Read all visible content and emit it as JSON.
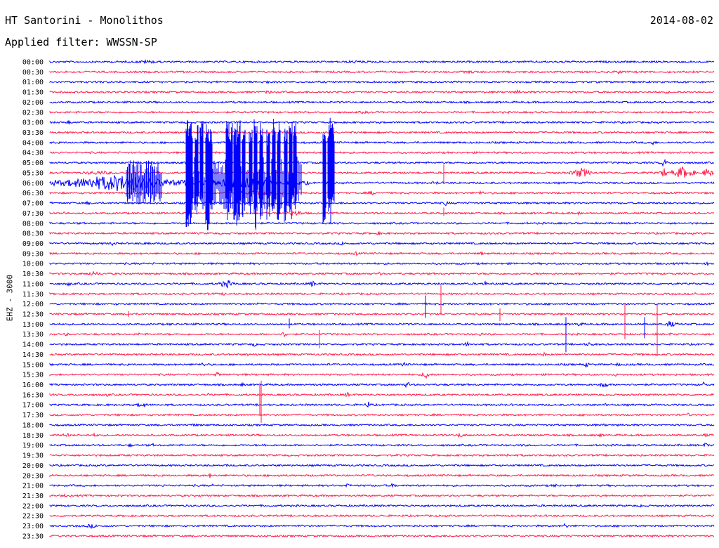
{
  "header": {
    "station": "HT Santorini - Monolithos",
    "date": "2014-08-02",
    "filter": "Applied filter: WWSSN-SP"
  },
  "channel_label": "EHZ - 3000",
  "colors": {
    "even_row": "#0000ff",
    "odd_row": "#ff1a4a",
    "text": "#000000"
  },
  "chart_data": {
    "type": "line",
    "title": "HT Santorini - Monolithos",
    "rows": [
      "00:00",
      "00:30",
      "01:00",
      "01:30",
      "02:00",
      "02:30",
      "03:00",
      "03:30",
      "04:00",
      "04:30",
      "05:00",
      "05:30",
      "06:00",
      "06:30",
      "07:00",
      "07:30",
      "08:00",
      "08:30",
      "09:00",
      "09:30",
      "10:00",
      "10:30",
      "11:00",
      "11:30",
      "12:00",
      "12:30",
      "13:00",
      "13:30",
      "14:00",
      "14:30",
      "15:00",
      "15:30",
      "16:00",
      "16:30",
      "17:00",
      "17:30",
      "18:00",
      "18:30",
      "19:00",
      "19:30",
      "20:00",
      "20:30",
      "21:00",
      "21:30",
      "22:00",
      "22:30",
      "23:00",
      "23:30"
    ],
    "ylabel": "EHZ - 3000",
    "grid": false,
    "legend": "none"
  }
}
